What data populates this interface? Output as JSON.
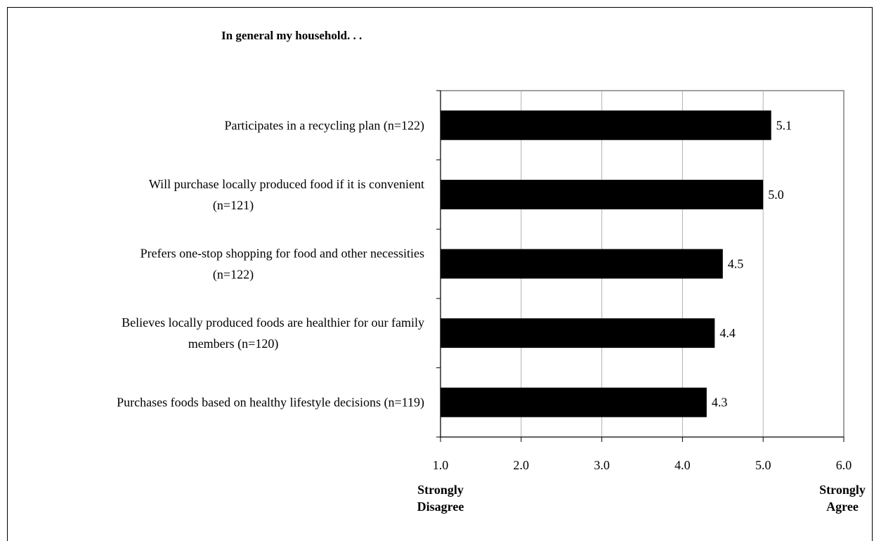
{
  "chart_data": {
    "type": "bar",
    "orientation": "horizontal",
    "title": "In general my household. . .",
    "categories": [
      [
        "Participates in a recycling plan (n=122)"
      ],
      [
        "Will purchase locally produced food if it is convenient",
        "(n=121)"
      ],
      [
        "Prefers one-stop shopping for food and other necessities",
        "(n=122)"
      ],
      [
        "Believes locally produced foods are healthier for our family",
        "members (n=120)"
      ],
      [
        "Purchases foods based on healthy lifestyle decisions (n=119)"
      ]
    ],
    "values": [
      5.1,
      5.0,
      4.5,
      4.4,
      4.3
    ],
    "value_labels": [
      "5.1",
      "5.0",
      "4.5",
      "4.4",
      "4.3"
    ],
    "xlim": [
      1.0,
      6.0
    ],
    "xticks": [
      "1.0",
      "2.0",
      "3.0",
      "4.0",
      "5.0",
      "6.0"
    ],
    "x_min_label": [
      "Strongly",
      "Disagree"
    ],
    "x_max_label": [
      "Strongly",
      "Agree"
    ],
    "bar_color": "#000000",
    "grid": true,
    "legend": "none"
  }
}
